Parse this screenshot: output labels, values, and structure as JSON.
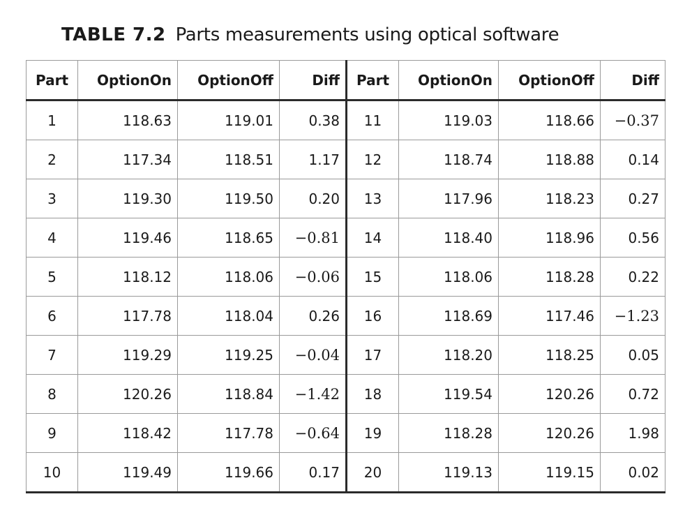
{
  "caption": {
    "label": "TABLE 7.2",
    "title": "Parts measurements using optical software"
  },
  "table": {
    "headers": [
      "Part",
      "OptionOn",
      "OptionOff",
      "Diff",
      "Part",
      "OptionOn",
      "OptionOff",
      "Diff"
    ],
    "rows": [
      [
        "1",
        "118.63",
        "119.01",
        "0.38",
        "11",
        "119.03",
        "118.66",
        "−0.37"
      ],
      [
        "2",
        "117.34",
        "118.51",
        "1.17",
        "12",
        "118.74",
        "118.88",
        "0.14"
      ],
      [
        "3",
        "119.30",
        "119.50",
        "0.20",
        "13",
        "117.96",
        "118.23",
        "0.27"
      ],
      [
        "4",
        "119.46",
        "118.65",
        "−0.81",
        "14",
        "118.40",
        "118.96",
        "0.56"
      ],
      [
        "5",
        "118.12",
        "118.06",
        "−0.06",
        "15",
        "118.06",
        "118.28",
        "0.22"
      ],
      [
        "6",
        "117.78",
        "118.04",
        "0.26",
        "16",
        "118.69",
        "117.46",
        "−1.23"
      ],
      [
        "7",
        "119.29",
        "119.25",
        "−0.04",
        "17",
        "118.20",
        "118.25",
        "0.05"
      ],
      [
        "8",
        "120.26",
        "118.84",
        "−1.42",
        "18",
        "119.54",
        "120.26",
        "0.72"
      ],
      [
        "9",
        "118.42",
        "117.78",
        "−0.64",
        "19",
        "118.28",
        "120.26",
        "1.98"
      ],
      [
        "10",
        "119.49",
        "119.66",
        "0.17",
        "20",
        "119.13",
        "119.15",
        "0.02"
      ]
    ]
  }
}
